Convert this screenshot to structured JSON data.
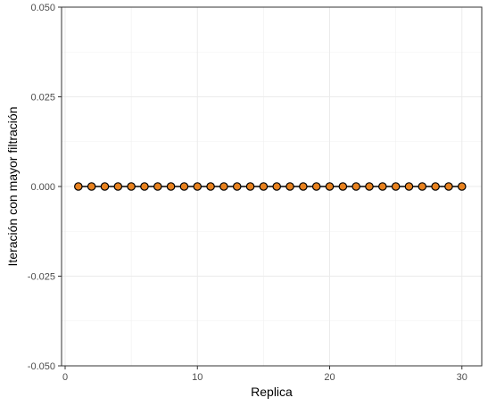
{
  "chart_data": {
    "type": "line",
    "title": "",
    "xlabel": "Replica",
    "ylabel": "Iteración con mayor filtración",
    "xlim": [
      0,
      31.5
    ],
    "ylim": [
      -0.05,
      0.05
    ],
    "x_ticks": [
      0,
      10,
      20,
      30
    ],
    "x_tick_labels": [
      "0",
      "10",
      "20",
      "30"
    ],
    "y_ticks": [
      -0.05,
      -0.025,
      0,
      0.025,
      0.05
    ],
    "y_tick_labels": [
      "-0.050",
      "-0.025",
      "0.000",
      "0.025",
      "0.050"
    ],
    "grid": true,
    "series": [
      {
        "x": [
          1,
          2,
          3,
          4,
          5,
          6,
          7,
          8,
          9,
          10,
          11,
          12,
          13,
          14,
          15,
          16,
          17,
          18,
          19,
          20,
          21,
          22,
          23,
          24,
          25,
          26,
          27,
          28,
          29,
          30
        ],
        "values": [
          0,
          0,
          0,
          0,
          0,
          0,
          0,
          0,
          0,
          0,
          0,
          0,
          0,
          0,
          0,
          0,
          0,
          0,
          0,
          0,
          0,
          0,
          0,
          0,
          0,
          0,
          0,
          0,
          0,
          0
        ],
        "line_color": "#000000",
        "marker_fill": "#e8821f",
        "marker_edge": "#000000"
      }
    ]
  }
}
